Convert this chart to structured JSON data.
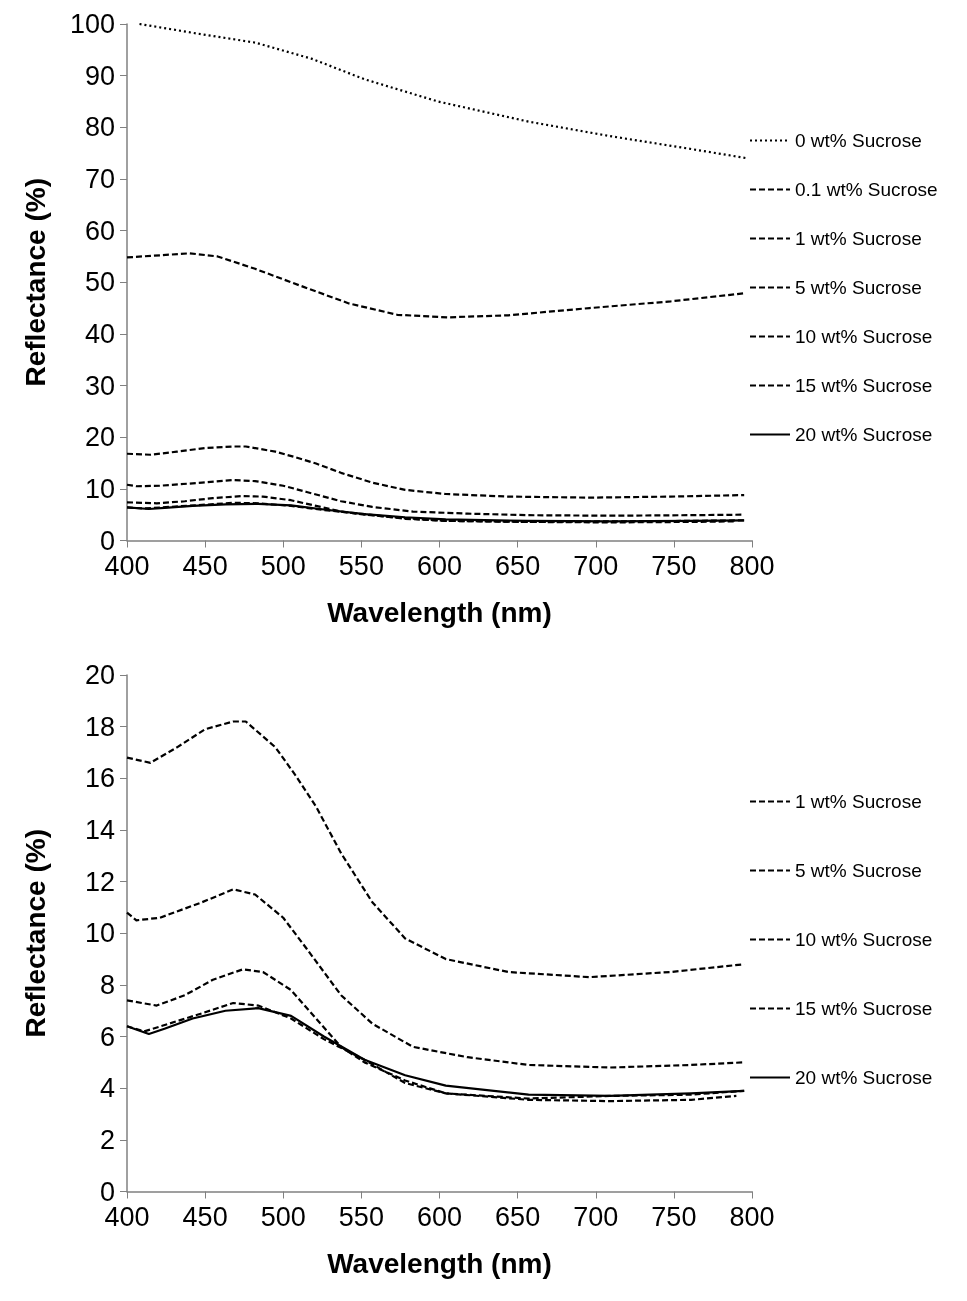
{
  "chart_data": [
    {
      "type": "line",
      "xlabel": "Wavelength (nm)",
      "ylabel": "Reflectance (%)",
      "xlim": [
        400,
        800
      ],
      "xticks": [
        400,
        450,
        500,
        550,
        600,
        650,
        700,
        750,
        800
      ],
      "ylim": [
        0,
        100
      ],
      "yticks": [
        0,
        10,
        20,
        30,
        40,
        50,
        60,
        70,
        80,
        90,
        100
      ],
      "legend": "right",
      "series": [
        {
          "name": "0 wt% Sucrose",
          "color": "#000000",
          "line_style": "dotted",
          "x": [
            408,
            448,
            482,
            518,
            552,
            599,
            657,
            709,
            761,
            797
          ],
          "values": [
            100,
            98.0,
            96.4,
            93.3,
            89.3,
            85.0,
            81.1,
            78.3,
            75.8,
            74.0
          ]
        },
        {
          "name": "0.1 wt% Sucrose",
          "color": "#000000",
          "line_style": "dashed",
          "x": [
            400,
            440,
            458,
            482,
            513,
            542,
            573,
            605,
            644,
            696,
            748,
            796
          ],
          "values": [
            54.8,
            55.6,
            55.0,
            52.6,
            49.1,
            45.9,
            43.7,
            43.2,
            43.6,
            45.0,
            46.3,
            47.9
          ]
        },
        {
          "name": "1 wt% Sucrose",
          "color": "#000000",
          "line_style": "dashed",
          "x": [
            400,
            415,
            432,
            450,
            468,
            476,
            495,
            508,
            521,
            537,
            557,
            578,
            604,
            644,
            696,
            748,
            795
          ],
          "values": [
            16.8,
            16.6,
            17.2,
            17.9,
            18.2,
            18.2,
            17.2,
            16.1,
            14.9,
            13.1,
            11.2,
            9.8,
            9.0,
            8.5,
            8.3,
            8.5,
            8.8
          ]
        },
        {
          "name": "5 wt% Sucrose",
          "color": "#000000",
          "line_style": "dashed",
          "x": [
            400,
            406,
            421,
            448,
            468,
            482,
            500,
            515,
            537,
            557,
            583,
            618,
            657,
            709,
            761,
            795
          ],
          "values": [
            10.8,
            10.5,
            10.6,
            11.2,
            11.7,
            11.5,
            10.6,
            9.4,
            7.6,
            6.5,
            5.6,
            5.2,
            4.9,
            4.8,
            4.9,
            5.0
          ]
        },
        {
          "name": "10 wt% Sucrose",
          "color": "#000000",
          "line_style": "dashed",
          "x": [
            400,
            419,
            437,
            455,
            474,
            487,
            505,
            521,
            537,
            552,
            578,
            604,
            657,
            709,
            761,
            790
          ],
          "values": [
            7.4,
            7.2,
            7.6,
            8.2,
            8.6,
            8.5,
            7.8,
            6.7,
            5.6,
            5.0,
            4.3,
            3.8,
            3.6,
            3.5,
            3.6,
            3.7
          ]
        },
        {
          "name": "15 wt% Sucrose",
          "color": "#000000",
          "line_style": "dashed",
          "x": [
            400,
            411,
            427,
            448,
            468,
            484,
            505,
            526,
            552,
            578,
            604,
            657,
            709,
            761,
            795
          ],
          "values": [
            6.4,
            6.2,
            6.5,
            6.9,
            7.3,
            7.2,
            6.7,
            5.9,
            5.1,
            4.2,
            3.8,
            3.6,
            3.7,
            3.8,
            3.9
          ]
        },
        {
          "name": "20 wt% Sucrose",
          "color": "#000000",
          "line_style": "solid",
          "x": [
            400,
            414,
            424,
            442,
            463,
            484,
            505,
            526,
            552,
            578,
            604,
            657,
            709,
            761,
            795
          ],
          "values": [
            6.4,
            6.1,
            6.3,
            6.7,
            7.0,
            7.1,
            6.8,
            6.0,
            5.1,
            4.5,
            4.1,
            3.8,
            3.7,
            3.8,
            3.9
          ]
        }
      ]
    },
    {
      "type": "line",
      "xlabel": "Wavelength (nm)",
      "ylabel": "Reflectance (%)",
      "xlim": [
        400,
        800
      ],
      "xticks": [
        400,
        450,
        500,
        550,
        600,
        650,
        700,
        750,
        800
      ],
      "ylim": [
        0,
        20
      ],
      "yticks": [
        0,
        2,
        4,
        6,
        8,
        10,
        12,
        14,
        16,
        18,
        20
      ],
      "legend": "right",
      "series": [
        {
          "name": "1 wt% Sucrose",
          "color": "#000000",
          "line_style": "dashed",
          "x": [
            400,
            415,
            432,
            450,
            468,
            476,
            495,
            508,
            521,
            537,
            557,
            578,
            604,
            644,
            696,
            748,
            795
          ],
          "values": [
            16.8,
            16.6,
            17.2,
            17.9,
            18.2,
            18.2,
            17.2,
            16.1,
            14.9,
            13.1,
            11.2,
            9.8,
            9.0,
            8.5,
            8.3,
            8.5,
            8.8
          ]
        },
        {
          "name": "5 wt% Sucrose",
          "color": "#000000",
          "line_style": "dashed",
          "x": [
            400,
            406,
            421,
            448,
            468,
            482,
            500,
            515,
            537,
            557,
            583,
            618,
            657,
            709,
            761,
            795
          ],
          "values": [
            10.8,
            10.5,
            10.6,
            11.2,
            11.7,
            11.5,
            10.6,
            9.4,
            7.6,
            6.5,
            5.6,
            5.2,
            4.9,
            4.8,
            4.9,
            5.0
          ]
        },
        {
          "name": "10 wt% Sucrose",
          "color": "#000000",
          "line_style": "dashed",
          "x": [
            400,
            419,
            437,
            455,
            474,
            487,
            505,
            521,
            537,
            552,
            578,
            604,
            657,
            709,
            761,
            790
          ],
          "values": [
            7.4,
            7.2,
            7.6,
            8.2,
            8.6,
            8.5,
            7.8,
            6.7,
            5.6,
            5.0,
            4.3,
            3.8,
            3.55,
            3.5,
            3.55,
            3.7
          ]
        },
        {
          "name": "15 wt% Sucrose",
          "color": "#000000",
          "line_style": "dashed",
          "x": [
            400,
            411,
            427,
            448,
            468,
            484,
            505,
            526,
            552,
            578,
            604,
            657,
            709,
            761,
            795
          ],
          "values": [
            6.4,
            6.2,
            6.5,
            6.9,
            7.3,
            7.2,
            6.7,
            5.9,
            5.1,
            4.2,
            3.8,
            3.6,
            3.7,
            3.75,
            3.9
          ]
        },
        {
          "name": "20 wt% Sucrose",
          "color": "#000000",
          "line_style": "solid",
          "x": [
            400,
            414,
            424,
            442,
            463,
            484,
            505,
            526,
            552,
            578,
            604,
            657,
            709,
            761,
            795
          ],
          "values": [
            6.4,
            6.1,
            6.3,
            6.7,
            7.0,
            7.1,
            6.8,
            6.0,
            5.1,
            4.5,
            4.1,
            3.75,
            3.7,
            3.8,
            3.9
          ]
        }
      ]
    }
  ]
}
